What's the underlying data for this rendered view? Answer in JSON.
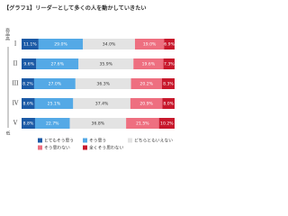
{
  "chart_data": {
    "type": "stacked-bar",
    "title": "【グラフ1】リーダーとして多くの人を動かしていきたい",
    "y_label_top": "商品高",
    "y_label_bottom": "低",
    "categories": [
      "I",
      "II",
      "III",
      "IV",
      "V"
    ],
    "xlim": [
      0,
      100
    ],
    "series": [
      {
        "name": "とてもそう思う",
        "color": "#1b5aa6",
        "values": [
          11.1,
          9.6,
          8.2,
          8.6,
          8.8
        ],
        "value_labels": [
          "11.1%",
          "9.6%",
          "8.2%",
          "8.6%",
          "8.8%"
        ]
      },
      {
        "name": "そう思う",
        "color": "#54a9e6",
        "values": [
          29.0,
          27.6,
          27.0,
          25.1,
          22.7
        ],
        "value_labels": [
          "29.0%",
          "27.6%",
          "27.0%",
          "25.1%",
          "22.7%"
        ]
      },
      {
        "name": "どちらともいえない",
        "color": "#e3e3e3",
        "values": [
          34.0,
          35.9,
          36.3,
          37.4,
          36.8
        ],
        "value_labels": [
          "34.0%",
          "35.9%",
          "36.3%",
          "37.4%",
          "36.8%"
        ]
      },
      {
        "name": "そう思わない",
        "color": "#ee6f80",
        "values": [
          19.0,
          19.6,
          20.2,
          20.9,
          21.5
        ],
        "value_labels": [
          "19.0%",
          "19.6%",
          "20.2%",
          "20.9%",
          "21.5%"
        ]
      },
      {
        "name": "全くそう思わない",
        "color": "#c8182c",
        "values": [
          6.9,
          7.3,
          8.3,
          8.0,
          10.2
        ],
        "value_labels": [
          "6.9%",
          "7.3%",
          "8.3%",
          "8.0%",
          "10.2%"
        ]
      }
    ]
  }
}
